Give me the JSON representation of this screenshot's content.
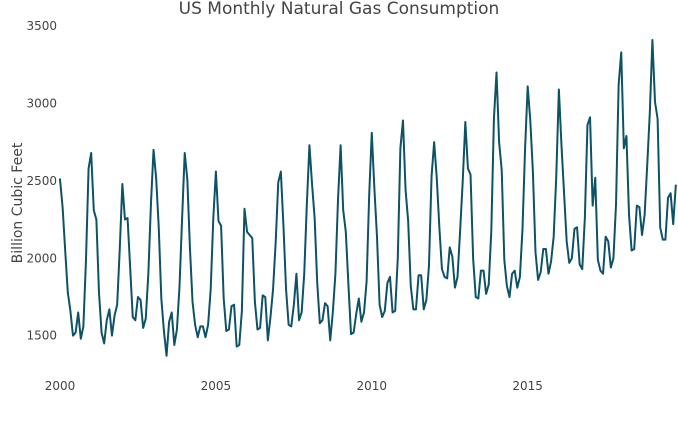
{
  "chart_data": {
    "type": "line",
    "title": "US Monthly Natural Gas Consumption",
    "xlabel": "",
    "ylabel": "Billion Cubic Feet",
    "xlim": [
      2000,
      2019.5
    ],
    "ylim": [
      1330,
      3500
    ],
    "x_ticks": [
      2000,
      2005,
      2010,
      2015
    ],
    "x_tick_labels": [
      "2000",
      "2005",
      "2010",
      "2015"
    ],
    "y_ticks": [
      1500,
      2000,
      2500,
      3000,
      3500
    ],
    "y_tick_labels": [
      "1500",
      "2000",
      "2500",
      "3000",
      "3500"
    ],
    "grid": false,
    "legend": "none",
    "line_color": "#0e5266",
    "series": [
      {
        "x_start": 2000,
        "x_step": 0.08333333,
        "values": [
          2510,
          2330,
          2050,
          1780,
          1660,
          1500,
          1520,
          1650,
          1480,
          1560,
          1990,
          2580,
          2680,
          2310,
          2250,
          1780,
          1520,
          1450,
          1600,
          1670,
          1500,
          1630,
          1700,
          2060,
          2480,
          2250,
          2260,
          1940,
          1620,
          1600,
          1750,
          1730,
          1550,
          1610,
          1900,
          2350,
          2700,
          2520,
          2200,
          1740,
          1530,
          1370,
          1590,
          1650,
          1440,
          1540,
          1820,
          2260,
          2680,
          2510,
          2070,
          1720,
          1570,
          1490,
          1560,
          1560,
          1490,
          1570,
          1800,
          2260,
          2560,
          2240,
          2210,
          1740,
          1530,
          1540,
          1690,
          1700,
          1430,
          1440,
          1660,
          2320,
          2170,
          2150,
          2130,
          1720,
          1540,
          1550,
          1760,
          1750,
          1470,
          1620,
          1800,
          2100,
          2490,
          2560,
          2210,
          1800,
          1570,
          1560,
          1700,
          1900,
          1600,
          1650,
          1900,
          2350,
          2730,
          2480,
          2260,
          1840,
          1580,
          1600,
          1710,
          1690,
          1470,
          1650,
          1900,
          2380,
          2730,
          2310,
          2170,
          1830,
          1510,
          1520,
          1640,
          1740,
          1590,
          1650,
          1850,
          2410,
          2810,
          2450,
          2140,
          1700,
          1620,
          1660,
          1840,
          1880,
          1650,
          1660,
          2000,
          2710,
          2890,
          2440,
          2240,
          1820,
          1670,
          1670,
          1890,
          1890,
          1670,
          1730,
          1950,
          2530,
          2750,
          2520,
          2200,
          1930,
          1880,
          1870,
          2070,
          2010,
          1810,
          1880,
          2180,
          2500,
          2880,
          2580,
          2540,
          2000,
          1750,
          1740,
          1920,
          1920,
          1770,
          1830,
          2180,
          2900,
          3200,
          2750,
          2570,
          1990,
          1820,
          1750,
          1900,
          1920,
          1810,
          1880,
          2190,
          2710,
          3110,
          2890,
          2560,
          2040,
          1860,
          1910,
          2060,
          2060,
          1900,
          1980,
          2140,
          2530,
          3090,
          2730,
          2420,
          2110,
          1970,
          2000,
          2190,
          2200,
          1960,
          1930,
          2260,
          2860,
          2910,
          2340,
          2520,
          1990,
          1920,
          1900,
          2140,
          2110,
          1940,
          2000,
          2350,
          3120,
          3330,
          2710,
          2790,
          2280,
          2050,
          2060,
          2340,
          2330,
          2150,
          2280,
          2600,
          2940,
          3410,
          3010,
          2900,
          2200,
          2120,
          2120,
          2390,
          2420,
          2220,
          2470
        ]
      }
    ]
  }
}
